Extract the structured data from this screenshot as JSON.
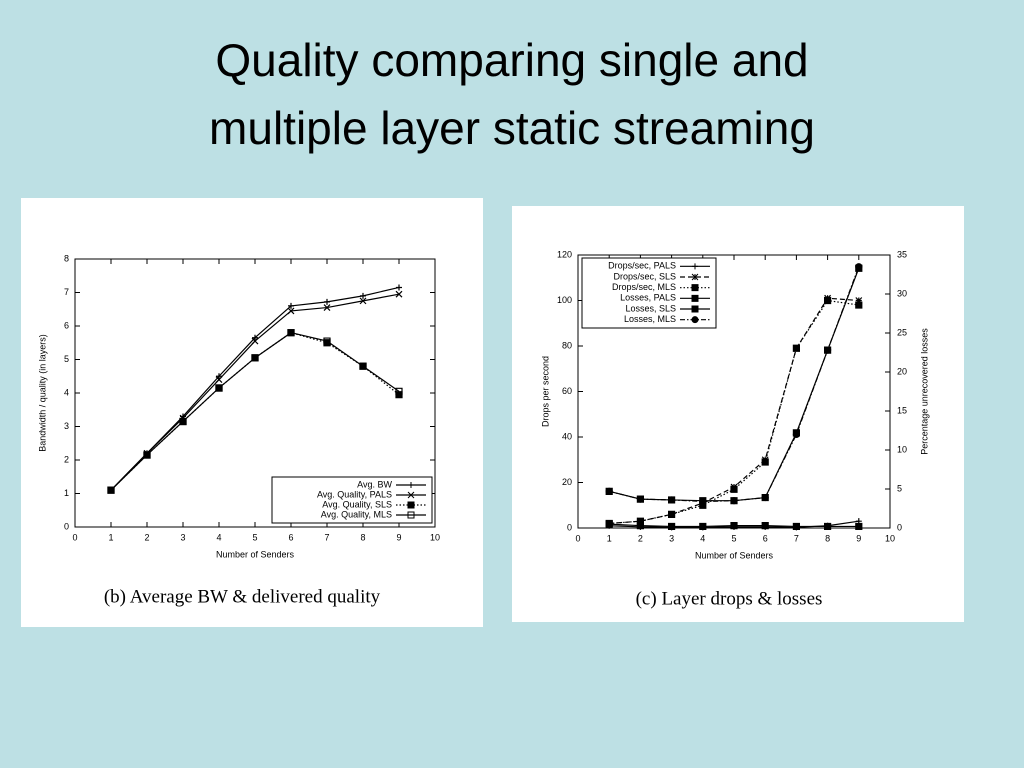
{
  "title": [
    "Quality comparing single and",
    "multiple layer static streaming"
  ],
  "chart_data": [
    {
      "type": "line",
      "caption": "(b) Average BW & delivered quality",
      "xlabel": "Number of Senders",
      "ylabel": "Bandwidth / quality (in layers)",
      "x": [
        1,
        2,
        3,
        4,
        5,
        6,
        7,
        8,
        9
      ],
      "xlim": [
        0,
        10
      ],
      "xticks": [
        0,
        1,
        2,
        3,
        4,
        5,
        6,
        7,
        8,
        9,
        10
      ],
      "ylim": [
        0,
        8
      ],
      "yticks": [
        0,
        1,
        2,
        3,
        4,
        5,
        6,
        7,
        8
      ],
      "legend": "lower right",
      "series": [
        {
          "name": "Avg. BW",
          "color": "#000000",
          "marker": "plus",
          "dash": "solid",
          "values": [
            1.1,
            2.2,
            3.3,
            4.5,
            5.65,
            6.6,
            6.72,
            6.9,
            7.15
          ]
        },
        {
          "name": "Avg. Quality, PALS",
          "color": "#000000",
          "marker": "cross",
          "dash": "solid",
          "values": [
            1.1,
            2.2,
            3.25,
            4.4,
            5.55,
            6.45,
            6.55,
            6.75,
            6.95
          ]
        },
        {
          "name": "Avg. Quality, SLS",
          "color": "#000000",
          "marker": "square",
          "dash": "dotted",
          "values": [
            1.1,
            2.15,
            3.15,
            4.15,
            5.05,
            5.8,
            5.5,
            4.8,
            3.95
          ]
        },
        {
          "name": "Avg. Quality, MLS",
          "color": "#000000",
          "marker": "square-open",
          "dash": "solid",
          "values": [
            1.1,
            2.15,
            3.15,
            4.15,
            5.05,
            5.8,
            5.55,
            4.8,
            4.05
          ]
        }
      ]
    },
    {
      "type": "line",
      "caption": "(c) Layer drops & losses",
      "xlabel": "Number of Senders",
      "ylabel": "Drops per second",
      "y2label": "Percentage unrecovered losses",
      "x": [
        1,
        2,
        3,
        4,
        5,
        6,
        7,
        8,
        9
      ],
      "xlim": [
        0,
        10
      ],
      "xticks": [
        0,
        1,
        2,
        3,
        4,
        5,
        6,
        7,
        8,
        9,
        10
      ],
      "ylim": [
        0,
        120
      ],
      "yticks": [
        0,
        20,
        40,
        60,
        80,
        100,
        120
      ],
      "y2lim": [
        0,
        35
      ],
      "y2ticks": [
        0,
        5,
        10,
        15,
        20,
        25,
        30,
        35
      ],
      "legend": "upper left",
      "series": [
        {
          "name": "Drops/sec, PALS",
          "color": "#000000",
          "marker": "plus",
          "dash": "solid",
          "values": [
            1,
            0.5,
            0.3,
            0.3,
            0.5,
            0.5,
            0.3,
            1,
            3
          ]
        },
        {
          "name": "Drops/sec, SLS",
          "color": "#000000",
          "marker": "star",
          "dash": "dashed",
          "values": [
            2,
            3,
            6,
            11,
            18,
            30,
            79,
            101,
            100
          ]
        },
        {
          "name": "Drops/sec, MLS",
          "color": "#000000",
          "marker": "square",
          "dash": "dotted",
          "values": [
            2,
            3,
            6,
            10,
            17,
            29,
            79,
            100,
            98
          ]
        },
        {
          "name": "Losses, PALS",
          "color": "#000000",
          "marker": "square",
          "dash": "solid",
          "axis": "y2",
          "values": [
            0.5,
            0.3,
            0.2,
            0.2,
            0.3,
            0.3,
            0.2,
            0.2,
            0.2
          ]
        },
        {
          "name": "Losses, SLS",
          "color": "#000000",
          "marker": "square",
          "dash": "solid",
          "axis": "y2",
          "values": [
            4.7,
            3.7,
            3.6,
            3.5,
            3.5,
            3.9,
            12.2,
            22.8,
            33.3
          ]
        },
        {
          "name": "Losses, MLS",
          "color": "#000000",
          "marker": "circle",
          "dash": "dashdot",
          "axis": "y2",
          "values": [
            4.7,
            3.7,
            3.6,
            3.4,
            3.5,
            3.9,
            12,
            22.8,
            33.5
          ]
        }
      ]
    }
  ]
}
